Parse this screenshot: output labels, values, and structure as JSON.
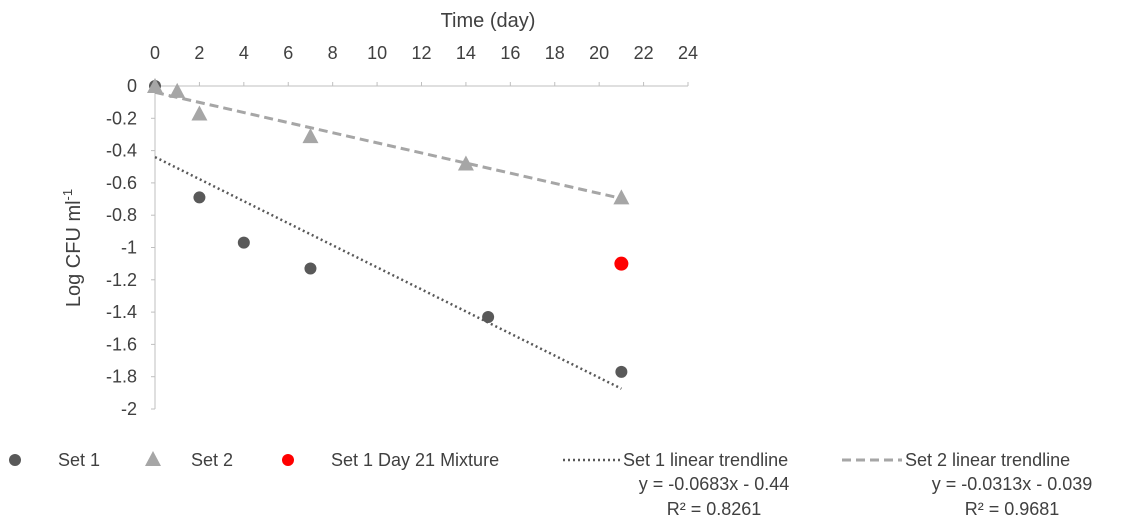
{
  "chart_data": {
    "type": "scatter",
    "title": "",
    "xlabel": "Time (day)",
    "ylabel_main": "Log CFU ml",
    "ylabel_sup": "-1",
    "xlim": [
      0,
      24
    ],
    "ylim": [
      -2,
      0
    ],
    "xticks": [
      0,
      2,
      4,
      6,
      8,
      10,
      12,
      14,
      16,
      18,
      20,
      22,
      24
    ],
    "yticks": [
      0,
      -0.2,
      -0.4,
      -0.6,
      -0.8,
      -1,
      -1.2,
      -1.4,
      -1.6,
      -1.8,
      -2
    ],
    "x_axis_position": "top",
    "grid": false,
    "legend_position": "bottom",
    "series": [
      {
        "name": "Set 1",
        "marker": "circle",
        "color": "#595959",
        "points": [
          {
            "x": 0,
            "y": 0
          },
          {
            "x": 2,
            "y": -0.69
          },
          {
            "x": 4,
            "y": -0.97
          },
          {
            "x": 7,
            "y": -1.13
          },
          {
            "x": 15,
            "y": -1.43
          },
          {
            "x": 21,
            "y": -1.77
          }
        ]
      },
      {
        "name": "Set 2",
        "marker": "triangle",
        "color": "#a6a6a6",
        "points": [
          {
            "x": 0,
            "y": 0
          },
          {
            "x": 1,
            "y": -0.03
          },
          {
            "x": 2,
            "y": -0.17
          },
          {
            "x": 7,
            "y": -0.31
          },
          {
            "x": 14,
            "y": -0.48
          },
          {
            "x": 21,
            "y": -0.69
          }
        ]
      },
      {
        "name": "Set 1 Day 21 Mixture",
        "marker": "circle",
        "color": "#ff0000",
        "points": [
          {
            "x": 21,
            "y": -1.1
          }
        ]
      }
    ],
    "trendlines": [
      {
        "name": "Set 1 linear trendline",
        "slope": -0.0683,
        "intercept": -0.44,
        "x_range": [
          0,
          21
        ],
        "style": "dotted",
        "color": "#595959",
        "equation": "y = -0.0683x - 0.44",
        "r2": "R² = 0.8261"
      },
      {
        "name": "Set 2 linear trendline",
        "slope": -0.0313,
        "intercept": -0.039,
        "x_range": [
          0,
          21
        ],
        "style": "dashed",
        "color": "#a6a6a6",
        "equation": "y = -0.0313x - 0.039",
        "r2": "R² = 0.9681"
      }
    ]
  }
}
